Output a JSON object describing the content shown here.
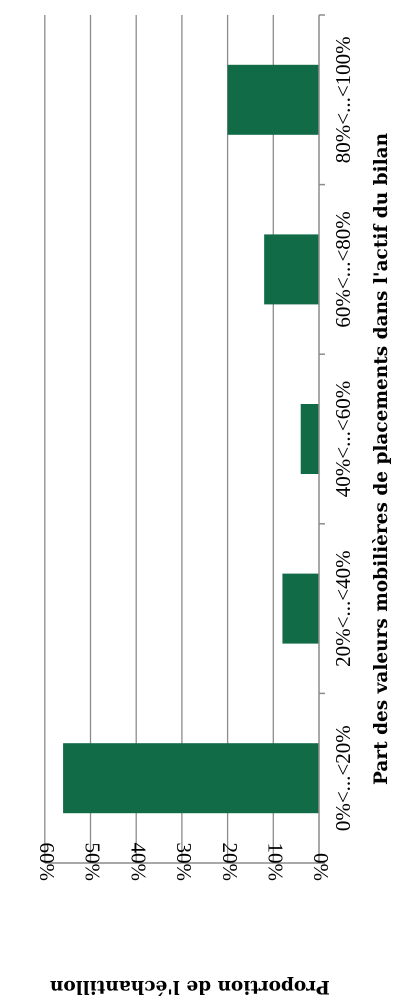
{
  "chart_data": {
    "type": "bar",
    "orientation": "horizontal",
    "rotated": "90deg clockwise",
    "categories": [
      "0%<...<20%",
      "20%<...<40%",
      "40%<...<60%",
      "60%<...<80%",
      "80%<...<100%"
    ],
    "values": [
      56,
      8,
      4,
      12,
      20
    ],
    "value_ticks": [
      "0%",
      "10%",
      "20%",
      "30%",
      "40%",
      "50%",
      "60%"
    ],
    "xlabel": "Part des valeurs mobilières de placements dans l'actif du bilan",
    "ylabel": "Proportion de l'échantillon",
    "ylim": [
      0,
      60
    ],
    "grid": true,
    "legend": "none",
    "bar_color": "#116b47",
    "grid_color": "#8c8c8c",
    "axis_color": "#8c8c8c"
  }
}
